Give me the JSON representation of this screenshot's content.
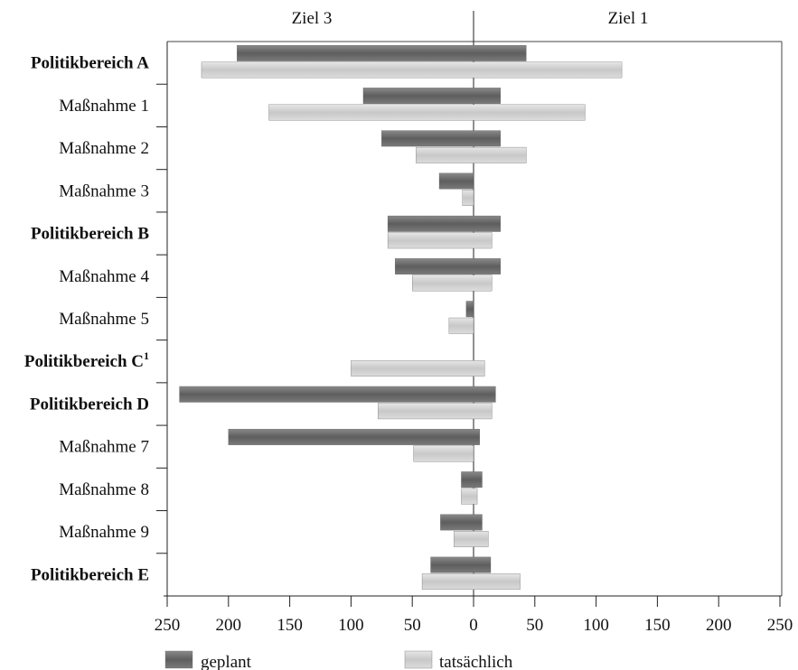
{
  "chart_data": {
    "type": "bar",
    "orientation": "horizontal",
    "headers": {
      "left": "Ziel 3",
      "right": "Ziel 1"
    },
    "categories": [
      {
        "label": "Politikbereich A",
        "bold": true
      },
      {
        "label": "Maßnahme 1",
        "bold": false
      },
      {
        "label": "Maßnahme 2",
        "bold": false
      },
      {
        "label": "Maßnahme 3",
        "bold": false
      },
      {
        "label": "Politikbereich B",
        "bold": true
      },
      {
        "label": "Maßnahme 4",
        "bold": false
      },
      {
        "label": "Maßnahme 5",
        "bold": false
      },
      {
        "label": "Politikbereich C",
        "sup": "1",
        "bold": true
      },
      {
        "label": "Politikbereich D",
        "bold": true
      },
      {
        "label": "Maßnahme 7",
        "bold": false
      },
      {
        "label": "Maßnahme 8",
        "bold": false
      },
      {
        "label": "Maßnahme 9",
        "bold": false
      },
      {
        "label": "Politikbereich E",
        "bold": true
      }
    ],
    "series": [
      {
        "name": "geplant",
        "color": "#6f6f6f",
        "ziel3": [
          193,
          90,
          75,
          28,
          70,
          64,
          6,
          null,
          240,
          200,
          10,
          27,
          35
        ],
        "ziel1": [
          43,
          22,
          22,
          0,
          22,
          22,
          0,
          null,
          18,
          5,
          7,
          7,
          14
        ]
      },
      {
        "name": "tatsächlich",
        "color": "#d4d4d4",
        "ziel3": [
          222,
          167,
          47,
          9,
          70,
          50,
          20,
          100,
          78,
          49,
          10,
          16,
          42
        ],
        "ziel1": [
          121,
          91,
          43,
          0,
          15,
          15,
          0,
          9,
          15,
          0,
          3,
          12,
          38
        ]
      }
    ],
    "xlim": [
      -250,
      250
    ],
    "x_ticks": [
      -250,
      -200,
      -150,
      -100,
      -50,
      0,
      50,
      100,
      150,
      200,
      250
    ],
    "x_tick_labels": [
      "250",
      "200",
      "150",
      "100",
      "50",
      "0",
      "50",
      "100",
      "150",
      "200",
      "250"
    ],
    "legend": [
      {
        "name": "geplant",
        "color": "#6f6f6f"
      },
      {
        "name": "tatsächlich",
        "color": "#d4d4d4"
      }
    ],
    "legend_position": "bottom",
    "grid": false
  }
}
